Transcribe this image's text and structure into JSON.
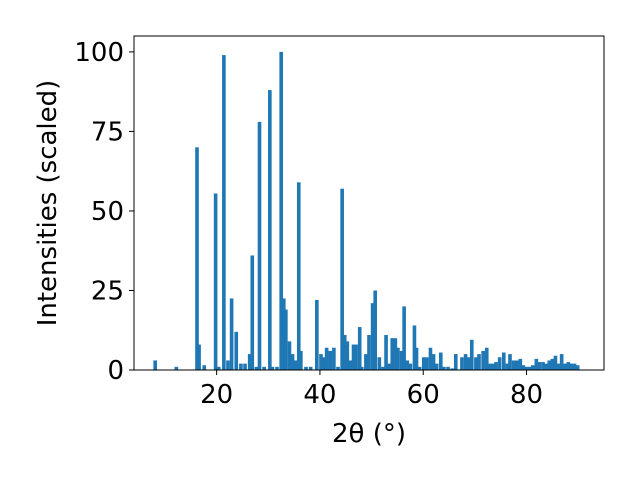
{
  "chart_data": {
    "type": "bar",
    "xlabel": "2θ (°)",
    "ylabel": "Intensities (scaled)",
    "xlim": [
      4,
      95
    ],
    "ylim": [
      0,
      105
    ],
    "xticks": [
      20,
      40,
      60,
      80
    ],
    "yticks": [
      0,
      25,
      50,
      75,
      100
    ],
    "grid": false,
    "bar_color": "#1f77b4",
    "bar_width_deg": 0.7,
    "x": [
      8.1,
      12.2,
      16.2,
      16.6,
      17.6,
      19.8,
      20.4,
      21.4,
      22.2,
      22.9,
      23.8,
      24.7,
      25.5,
      26.4,
      26.9,
      27.7,
      28.3,
      29.2,
      30.3,
      30.8,
      31.7,
      32.5,
      33.0,
      33.4,
      34.1,
      34.7,
      35.3,
      35.9,
      36.3,
      37.3,
      38.2,
      39.4,
      40.2,
      40.8,
      41.3,
      42.0,
      42.7,
      43.5,
      44.3,
      44.8,
      45.3,
      45.9,
      46.5,
      47.0,
      47.7,
      48.1,
      48.9,
      49.5,
      50.2,
      50.7,
      51.5,
      52.2,
      52.8,
      53.4,
      54.0,
      54.6,
      55.1,
      55.8,
      56.3,
      56.9,
      57.5,
      58.3,
      58.7,
      59.3,
      60.1,
      60.7,
      61.4,
      62.0,
      62.6,
      63.4,
      64.0,
      64.8,
      65.6,
      66.3,
      67.5,
      68.2,
      68.8,
      69.4,
      70.2,
      70.8,
      71.6,
      72.3,
      72.9,
      73.5,
      74.1,
      74.8,
      75.6,
      76.3,
      76.8,
      77.5,
      78.1,
      78.8,
      79.4,
      80.0,
      80.6,
      81.2,
      81.9,
      82.5,
      83.2,
      83.8,
      84.4,
      85.0,
      85.6,
      86.2,
      86.8,
      87.5,
      88.1,
      88.7,
      89.3,
      89.9
    ],
    "values": [
      3,
      1,
      70,
      8,
      1.5,
      55.5,
      1,
      99,
      3,
      22.5,
      12,
      2,
      2,
      5,
      36,
      1,
      78,
      1,
      88,
      1,
      1,
      100,
      22.5,
      19,
      9,
      5,
      3,
      59,
      6,
      1,
      1,
      22,
      5,
      4,
      7,
      6,
      7,
      1,
      57,
      11,
      9,
      3,
      8,
      8,
      13.5,
      1,
      5,
      11,
      21,
      25,
      4,
      1,
      11,
      2,
      10,
      10,
      7,
      6,
      20,
      3,
      2,
      14,
      7,
      1,
      4,
      4,
      7,
      5,
      2,
      5.5,
      1,
      1,
      0.5,
      5,
      4,
      5,
      4,
      9.5,
      4,
      5,
      6,
      7,
      2,
      2,
      2.5,
      4,
      5.5,
      2,
      5,
      3,
      3,
      3.5,
      1.5,
      1,
      1,
      1.5,
      3.5,
      2.5,
      2.5,
      2,
      3,
      3.5,
      4.5,
      2,
      5,
      2,
      2.5,
      2,
      2,
      1.5
    ]
  }
}
